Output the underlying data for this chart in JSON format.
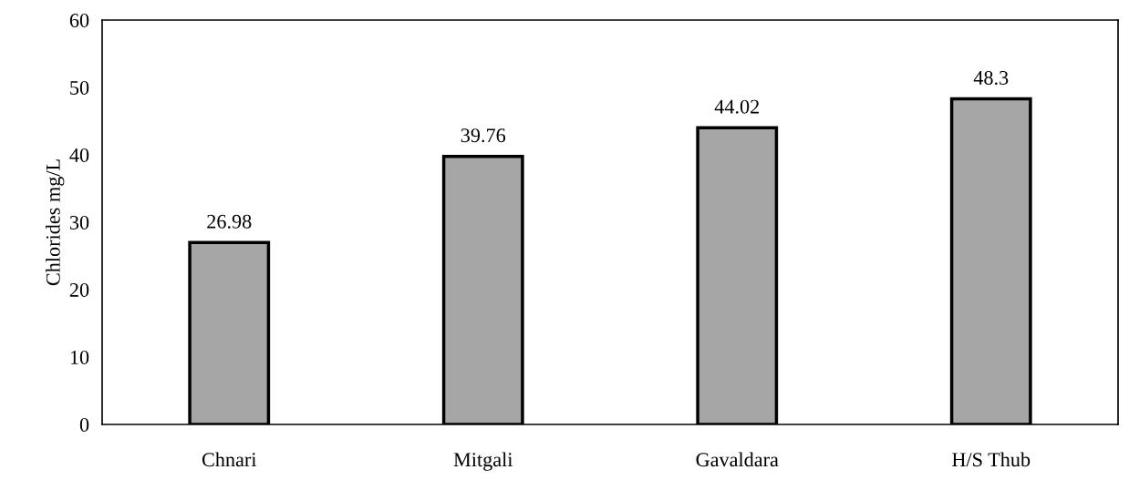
{
  "chart_data": {
    "type": "bar",
    "ylabel": "Chlorides mg/L",
    "categories": [
      "Chnari",
      "Mitgali",
      "Gavaldara",
      "H/S Thub"
    ],
    "values": [
      26.98,
      39.76,
      44.02,
      48.3
    ],
    "color": "#a6a6a6",
    "ylim": [
      0,
      60
    ],
    "yticks": [
      0,
      10,
      20,
      30,
      40,
      50,
      60
    ],
    "grid": false,
    "data_labels": true
  }
}
